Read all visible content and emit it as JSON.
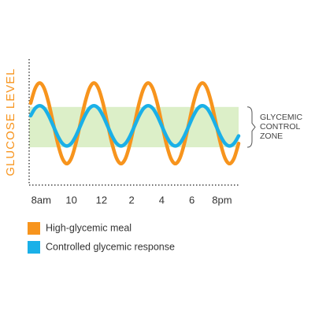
{
  "chart_data": {
    "type": "line",
    "y_label": "GLUCOSE LEVEL",
    "x": [
      7.3,
      7.6,
      7.9,
      8.2,
      8.5,
      8.8,
      9.1,
      9.4,
      9.7,
      10,
      10.3,
      10.6,
      10.9,
      11.2,
      11.5,
      11.8,
      12.1,
      12.4,
      12.7,
      13,
      13.3,
      13.6,
      13.9,
      14.2,
      14.5,
      14.8,
      15.1,
      15.4,
      15.7,
      16,
      16.3,
      16.6,
      16.9,
      17.2,
      17.5,
      17.8,
      18.1,
      18.4,
      18.7,
      19,
      19.3,
      19.6,
      19.9,
      20.2,
      20.5,
      20.8,
      21.1
    ],
    "series": [
      {
        "name": "High-glycemic meal",
        "color": "#f7941d",
        "values": [
          65,
          76.7,
          81,
          76.7,
          65,
          49,
          33,
          21.3,
          17,
          21.3,
          33,
          49,
          65,
          76.7,
          81,
          76.7,
          65,
          49,
          33,
          21.3,
          17,
          21.3,
          33,
          49,
          65,
          76.7,
          81,
          76.7,
          65,
          49,
          33,
          21.3,
          17,
          21.3,
          33,
          49,
          65,
          76.7,
          81,
          76.7,
          65,
          49,
          33,
          21.3,
          17,
          21.3,
          33
        ]
      },
      {
        "name": "Controlled glycemic response",
        "color": "#1ab0e8",
        "values": [
          55,
          60.9,
          63,
          60.9,
          55,
          47,
          39,
          33.1,
          31,
          33.1,
          39,
          47,
          55,
          60.9,
          63,
          60.9,
          55,
          47,
          39,
          33.1,
          31,
          33.1,
          39,
          47,
          55,
          60.9,
          63,
          60.9,
          55,
          47,
          39,
          33.1,
          31,
          33.1,
          39,
          47,
          55,
          60.9,
          63,
          60.9,
          55,
          47,
          39,
          33.1,
          31,
          33.1,
          39
        ]
      }
    ],
    "xlim": [
      7.2,
      21.1
    ],
    "xticks": [
      {
        "value": 8,
        "label": "8am"
      },
      10,
      12,
      {
        "value": 14,
        "label": "2"
      },
      {
        "value": 16,
        "label": "4"
      },
      {
        "value": 18,
        "label": "6"
      },
      {
        "value": 20,
        "label": "8pm"
      }
    ],
    "ylim": [
      0,
      100
    ],
    "zone": {
      "range": [
        30,
        62
      ],
      "color": "#dcefc8",
      "label": [
        "GLYCEMIC",
        "CONTROL",
        "ZONE"
      ]
    },
    "legend": "bottom-left"
  }
}
